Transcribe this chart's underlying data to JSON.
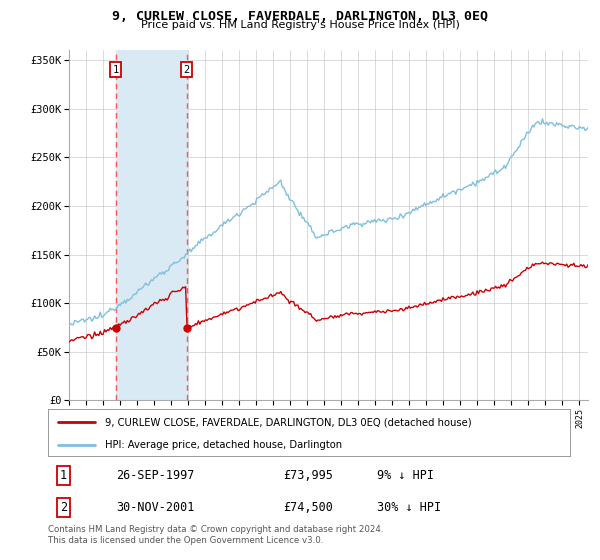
{
  "title": "9, CURLEW CLOSE, FAVERDALE, DARLINGTON, DL3 0EQ",
  "subtitle": "Price paid vs. HM Land Registry's House Price Index (HPI)",
  "legend_line1": "9, CURLEW CLOSE, FAVERDALE, DARLINGTON, DL3 0EQ (detached house)",
  "legend_line2": "HPI: Average price, detached house, Darlington",
  "transaction1_date": "26-SEP-1997",
  "transaction1_price": "£73,995",
  "transaction1_hpi": "9% ↓ HPI",
  "transaction2_date": "30-NOV-2001",
  "transaction2_price": "£74,500",
  "transaction2_hpi": "30% ↓ HPI",
  "footer": "Contains HM Land Registry data © Crown copyright and database right 2024.\nThis data is licensed under the Open Government Licence v3.0.",
  "background_color": "#ffffff",
  "grid_color": "#cccccc",
  "hpi_line_color": "#7fbfdf",
  "price_line_color": "#cc0000",
  "vline_color": "#ff5555",
  "shade_color": "#daeaf5",
  "marker_color": "#cc0000",
  "transaction1_x": 1997.74,
  "transaction2_x": 2001.92,
  "transaction1_y": 73995,
  "transaction2_y": 74500,
  "xmin": 1995.0,
  "xmax": 2025.5,
  "ymin": 0,
  "ymax": 360000,
  "yticks": [
    0,
    50000,
    100000,
    150000,
    200000,
    250000,
    300000,
    350000
  ],
  "ytick_labels": [
    "£0",
    "£50K",
    "£100K",
    "£150K",
    "£200K",
    "£250K",
    "£300K",
    "£350K"
  ]
}
